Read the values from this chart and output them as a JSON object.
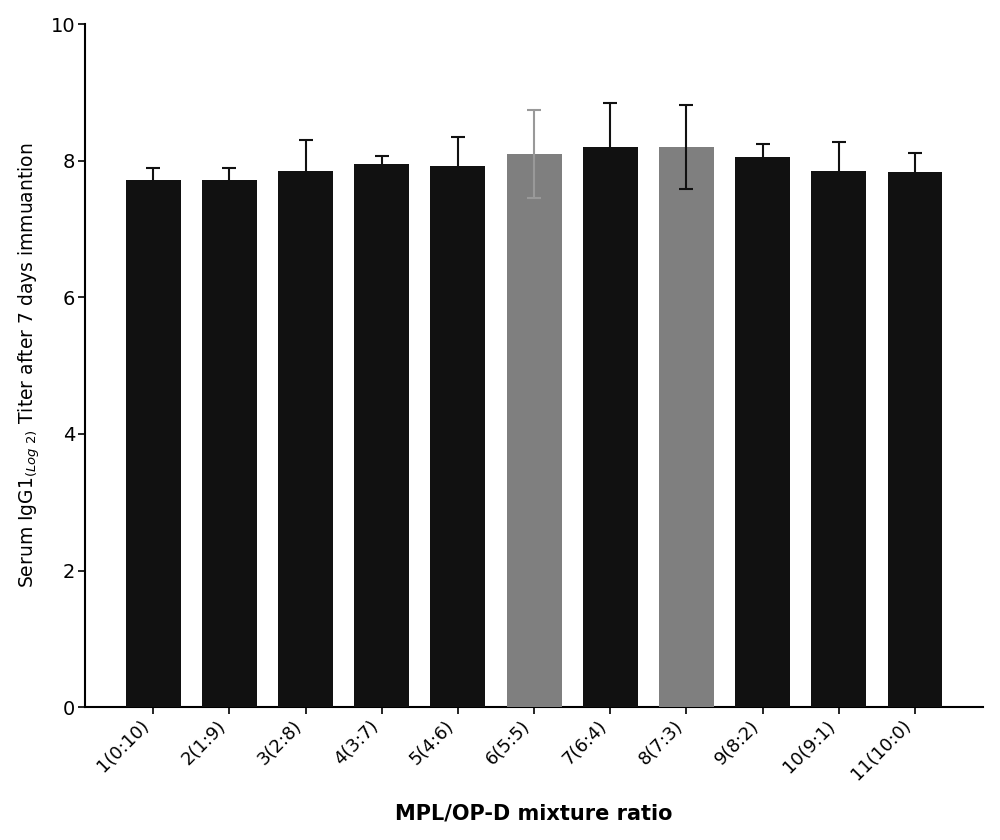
{
  "categories": [
    "1(0:10)",
    "2(1:9)",
    "3(2:8)",
    "4(3:7)",
    "5(4:6)",
    "6(5:5)",
    "7(6:4)",
    "8(7:3)",
    "9(8:2)",
    "10(9:1)",
    "11(10:0)"
  ],
  "values": [
    7.72,
    7.72,
    7.85,
    7.95,
    7.93,
    8.1,
    8.2,
    8.2,
    8.05,
    7.85,
    7.83
  ],
  "errors": [
    0.18,
    0.18,
    0.45,
    0.12,
    0.42,
    0.65,
    0.65,
    0.62,
    0.2,
    0.42,
    0.28
  ],
  "bar_colors": [
    "#111111",
    "#111111",
    "#111111",
    "#111111",
    "#111111",
    "#7f7f7f",
    "#111111",
    "#7f7f7f",
    "#111111",
    "#111111",
    "#111111"
  ],
  "error_colors": [
    "#111111",
    "#111111",
    "#111111",
    "#111111",
    "#111111",
    "#999999",
    "#111111",
    "#111111",
    "#111111",
    "#111111",
    "#111111"
  ],
  "xlabel": "MPL/OP-D mixture ratio",
  "ylim": [
    0,
    10
  ],
  "yticks": [
    0,
    2,
    4,
    6,
    8,
    10
  ],
  "background_color": "#ffffff",
  "bar_width": 0.72,
  "ylabel_fontsize": 13.5,
  "xlabel_fontsize": 15,
  "tick_fontsize": 13
}
